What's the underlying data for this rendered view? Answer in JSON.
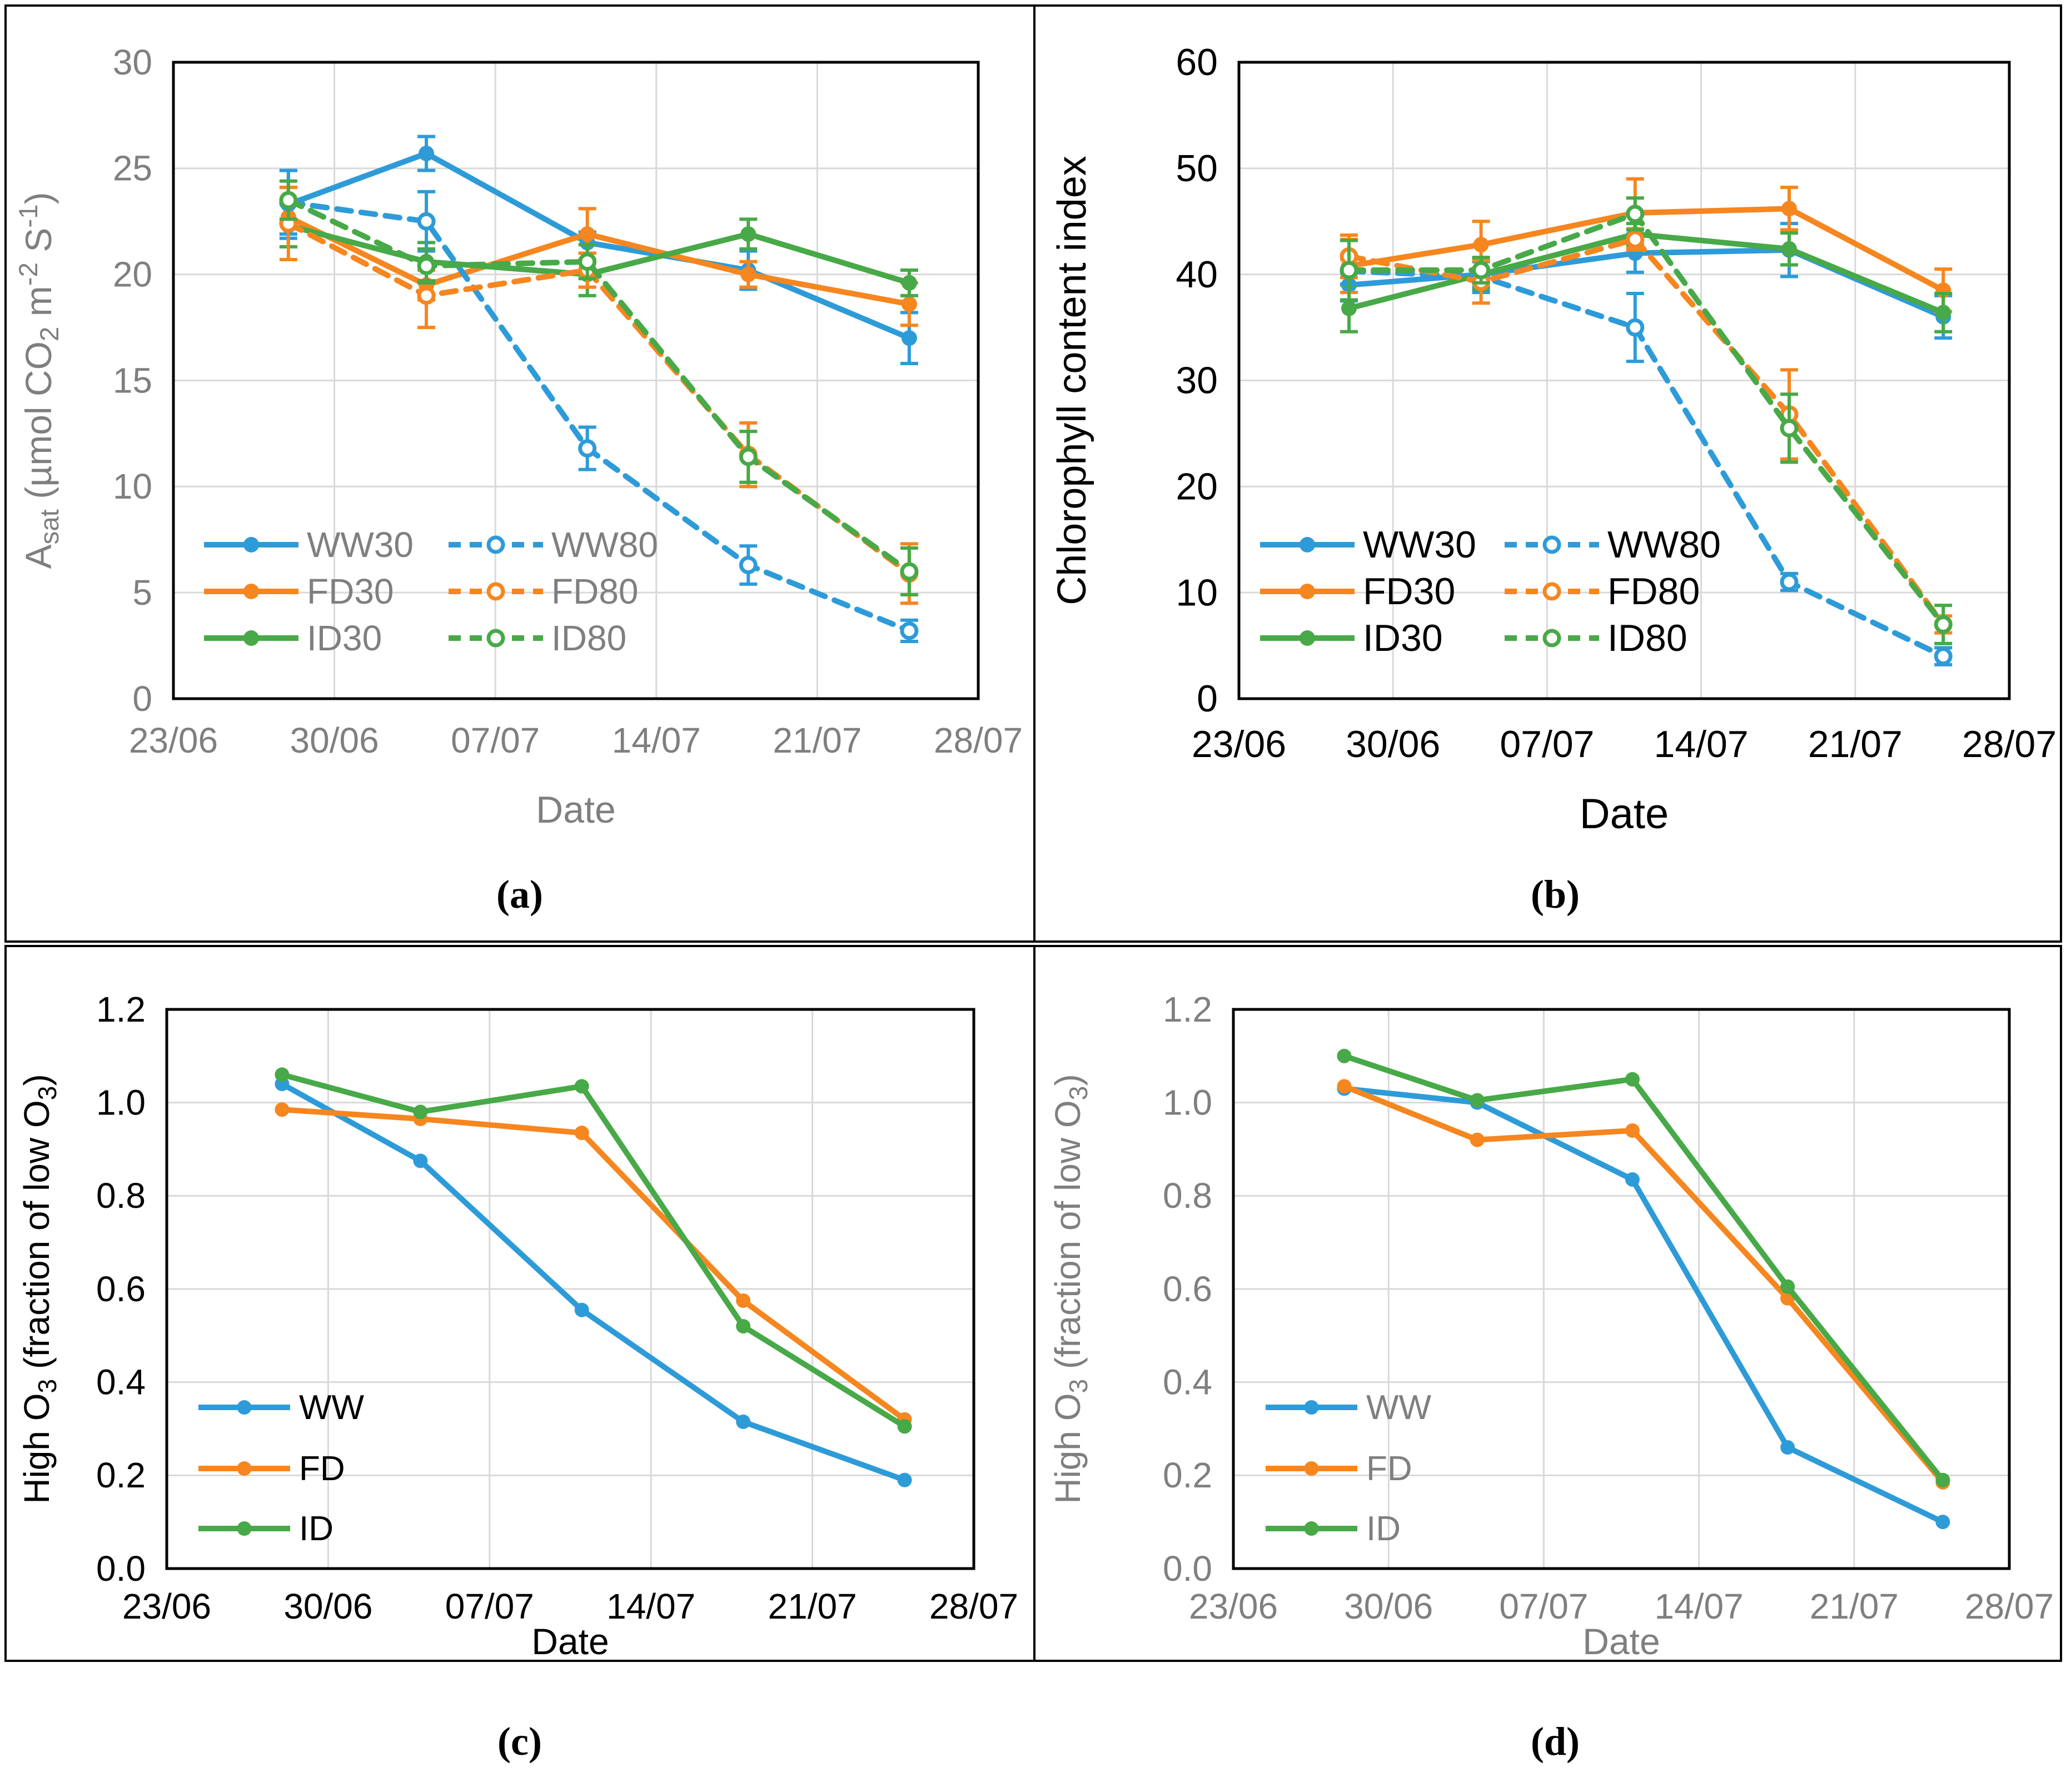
{
  "figure": {
    "panel_labels": {
      "a": "(a)",
      "b": "(b)",
      "c": "(c)",
      "d": "(d)"
    }
  },
  "palette": {
    "blue": "#2E9BD9",
    "orange": "#F6861F",
    "green": "#47A947",
    "gray_text": "#7F7F7F",
    "black_text": "#000000",
    "gridline": "#D9D9D9",
    "plot_border": "#000000",
    "open_marker_fill": "#FFFFFF"
  },
  "chart_data": [
    {
      "id": "a",
      "panel_label": "(a)",
      "type": "line",
      "xlabel": "Date",
      "ylabel": "Asat (µmol CO2 m-2 S-1)",
      "ylabel_rich": [
        [
          "A"
        ],
        [
          "sat",
          "sub"
        ],
        [
          " (µmol CO"
        ],
        [
          "2",
          "sub"
        ],
        [
          " m"
        ],
        [
          "-2",
          "sup"
        ],
        [
          " S"
        ],
        [
          "-1",
          "sup"
        ],
        [
          ")"
        ]
      ],
      "x_tick_labels": [
        "23/06",
        "30/06",
        "07/07",
        "14/07",
        "21/07",
        "28/07"
      ],
      "x_tick_days": [
        0,
        7,
        14,
        21,
        28,
        35
      ],
      "x_points_days": [
        5,
        11,
        18,
        25,
        32
      ],
      "x_points_dates": [
        "28/06",
        "04/07",
        "11/07",
        "18/07",
        "25/07"
      ],
      "ylim": [
        0,
        30
      ],
      "y_tick_labels": [
        "0",
        "5",
        "10",
        "15",
        "20",
        "25",
        "30"
      ],
      "grid": true,
      "legend_position": "lower-left",
      "legend_columns": [
        [
          "WW30",
          "FD30",
          "ID30"
        ],
        [
          "WW80",
          "FD80",
          "ID80"
        ]
      ],
      "text_color": "#7F7F7F",
      "series": [
        {
          "name": "WW30",
          "color": "#2E9BD9",
          "line": "solid",
          "marker": "filled",
          "values": [
            23.3,
            25.7,
            21.5,
            20.2,
            17.0
          ],
          "errors": [
            1.6,
            0.8,
            0.5,
            0.9,
            1.2
          ]
        },
        {
          "name": "FD30",
          "color": "#F6861F",
          "line": "solid",
          "marker": "filled",
          "values": [
            22.7,
            19.5,
            21.9,
            20.0,
            18.6
          ],
          "errors": [
            1.4,
            0.7,
            1.2,
            0.6,
            1.0
          ]
        },
        {
          "name": "ID30",
          "color": "#47A947",
          "line": "solid",
          "marker": "filled",
          "values": [
            22.3,
            20.6,
            20.0,
            21.9,
            19.6
          ],
          "errors": [
            1.0,
            0.9,
            1.0,
            0.7,
            0.6
          ]
        },
        {
          "name": "WW80",
          "color": "#2E9BD9",
          "line": "dashed",
          "marker": "open",
          "values": [
            23.4,
            22.5,
            11.8,
            6.3,
            3.2
          ],
          "errors": [
            1.5,
            1.4,
            1.0,
            0.9,
            0.5
          ]
        },
        {
          "name": "FD80",
          "color": "#F6861F",
          "line": "dashed",
          "marker": "open",
          "values": [
            22.4,
            19.0,
            20.2,
            11.5,
            5.9
          ],
          "errors": [
            1.7,
            1.5,
            0.8,
            1.5,
            1.4
          ]
        },
        {
          "name": "ID80",
          "color": "#47A947",
          "line": "dashed",
          "marker": "open",
          "values": [
            23.5,
            20.4,
            20.6,
            11.4,
            6.0
          ],
          "errors": [
            0.9,
            0.8,
            0.8,
            1.2,
            1.1
          ]
        }
      ]
    },
    {
      "id": "b",
      "panel_label": "(b)",
      "type": "line",
      "xlabel": "Date",
      "ylabel": "Chlorophyll content index",
      "ylabel_rich": [
        [
          "Chlorophyll  content index"
        ]
      ],
      "x_tick_labels": [
        "23/06",
        "30/06",
        "07/07",
        "14/07",
        "21/07",
        "28/07"
      ],
      "x_tick_days": [
        0,
        7,
        14,
        21,
        28,
        35
      ],
      "x_points_days": [
        5,
        11,
        18,
        25,
        32
      ],
      "x_points_dates": [
        "28/06",
        "04/07",
        "11/07",
        "18/07",
        "25/07"
      ],
      "ylim": [
        0,
        60
      ],
      "y_tick_labels": [
        "0",
        "10",
        "20",
        "30",
        "40",
        "50",
        "60"
      ],
      "grid": true,
      "legend_position": "lower-left",
      "legend_columns": [
        [
          "WW30",
          "FD30",
          "ID30"
        ],
        [
          "WW80",
          "FD80",
          "ID80"
        ]
      ],
      "text_color": "#000000",
      "series": [
        {
          "name": "WW30",
          "color": "#2E9BD9",
          "line": "solid",
          "marker": "filled",
          "values": [
            39.0,
            40.0,
            42.0,
            42.3,
            36.0
          ],
          "errors": [
            1.5,
            1.2,
            1.8,
            2.5,
            2.0
          ]
        },
        {
          "name": "FD30",
          "color": "#F6861F",
          "line": "solid",
          "marker": "filled",
          "values": [
            40.8,
            42.8,
            45.8,
            46.2,
            38.5
          ],
          "errors": [
            2.5,
            2.2,
            3.2,
            2.0,
            2.0
          ]
        },
        {
          "name": "ID30",
          "color": "#47A947",
          "line": "solid",
          "marker": "filled",
          "values": [
            36.8,
            40.0,
            43.8,
            42.4,
            36.4
          ],
          "errors": [
            2.2,
            1.5,
            1.0,
            1.5,
            1.8
          ]
        },
        {
          "name": "WW80",
          "color": "#2E9BD9",
          "line": "dashed",
          "marker": "open",
          "values": [
            40.3,
            39.8,
            35.0,
            11.0,
            4.0
          ],
          "errors": [
            1.2,
            1.5,
            3.2,
            0.8,
            0.8
          ]
        },
        {
          "name": "FD80",
          "color": "#F6861F",
          "line": "dashed",
          "marker": "open",
          "values": [
            41.7,
            39.3,
            43.3,
            26.8,
            7.0
          ],
          "errors": [
            2.0,
            2.0,
            1.0,
            4.2,
            0.8
          ]
        },
        {
          "name": "ID80",
          "color": "#47A947",
          "line": "dashed",
          "marker": "open",
          "values": [
            40.4,
            40.4,
            45.7,
            25.5,
            7.0
          ],
          "errors": [
            2.8,
            1.2,
            1.5,
            3.2,
            1.8
          ]
        }
      ]
    },
    {
      "id": "c",
      "panel_label": "(c)",
      "type": "line",
      "xlabel": "Date",
      "ylabel": "High O3 (fraction of low O3)",
      "ylabel_rich": [
        [
          "High O"
        ],
        [
          "3",
          "sub"
        ],
        [
          " (fraction of low O"
        ],
        [
          "3",
          "sub"
        ],
        [
          ")"
        ]
      ],
      "x_tick_labels": [
        "23/06",
        "30/06",
        "07/07",
        "14/07",
        "21/07",
        "28/07"
      ],
      "x_tick_days": [
        0,
        7,
        14,
        21,
        28,
        35
      ],
      "x_points_days": [
        5,
        11,
        18,
        25,
        32
      ],
      "x_points_dates": [
        "28/06",
        "04/07",
        "11/07",
        "18/07",
        "25/07"
      ],
      "ylim": [
        0,
        1.2
      ],
      "y_tick_labels": [
        "0.0",
        "0.2",
        "0.4",
        "0.6",
        "0.8",
        "1.0",
        "1.2"
      ],
      "grid": true,
      "legend_position": "lower-left",
      "legend_columns": [
        [
          "WW",
          "FD",
          "ID"
        ]
      ],
      "text_color": "#000000",
      "series": [
        {
          "name": "WW",
          "color": "#2E9BD9",
          "line": "solid",
          "marker": "filled",
          "values": [
            1.04,
            0.875,
            0.555,
            0.315,
            0.19
          ]
        },
        {
          "name": "FD",
          "color": "#F6861F",
          "line": "solid",
          "marker": "filled",
          "values": [
            0.985,
            0.965,
            0.935,
            0.575,
            0.32
          ]
        },
        {
          "name": "ID",
          "color": "#47A947",
          "line": "solid",
          "marker": "filled",
          "values": [
            1.06,
            0.98,
            1.035,
            0.52,
            0.305
          ]
        }
      ]
    },
    {
      "id": "d",
      "panel_label": "(d)",
      "type": "line",
      "xlabel": "Date",
      "ylabel": "High O3 (fraction of low O3)",
      "ylabel_rich": [
        [
          "High O"
        ],
        [
          "3",
          "sub"
        ],
        [
          " (fraction of low O"
        ],
        [
          "3",
          "sub"
        ],
        [
          ")"
        ]
      ],
      "x_tick_labels": [
        "23/06",
        "30/06",
        "07/07",
        "14/07",
        "21/07",
        "28/07"
      ],
      "x_tick_days": [
        0,
        7,
        14,
        21,
        28,
        35
      ],
      "x_points_days": [
        5,
        11,
        18,
        25,
        32
      ],
      "x_points_dates": [
        "28/06",
        "04/07",
        "11/07",
        "18/07",
        "25/07"
      ],
      "ylim": [
        0,
        1.2
      ],
      "y_tick_labels": [
        "0.0",
        "0.2",
        "0.4",
        "0.6",
        "0.8",
        "1.0",
        "1.2"
      ],
      "grid": true,
      "legend_position": "lower-left",
      "legend_columns": [
        [
          "WW",
          "FD",
          "ID"
        ]
      ],
      "text_color": "#7F7F7F",
      "series": [
        {
          "name": "WW",
          "color": "#2E9BD9",
          "line": "solid",
          "marker": "filled",
          "values": [
            1.03,
            1.0,
            0.835,
            0.26,
            0.1
          ]
        },
        {
          "name": "FD",
          "color": "#F6861F",
          "line": "solid",
          "marker": "filled",
          "values": [
            1.035,
            0.92,
            0.94,
            0.58,
            0.185
          ]
        },
        {
          "name": "ID",
          "color": "#47A947",
          "line": "solid",
          "marker": "filled",
          "values": [
            1.1,
            1.005,
            1.05,
            0.605,
            0.19
          ]
        }
      ]
    }
  ]
}
